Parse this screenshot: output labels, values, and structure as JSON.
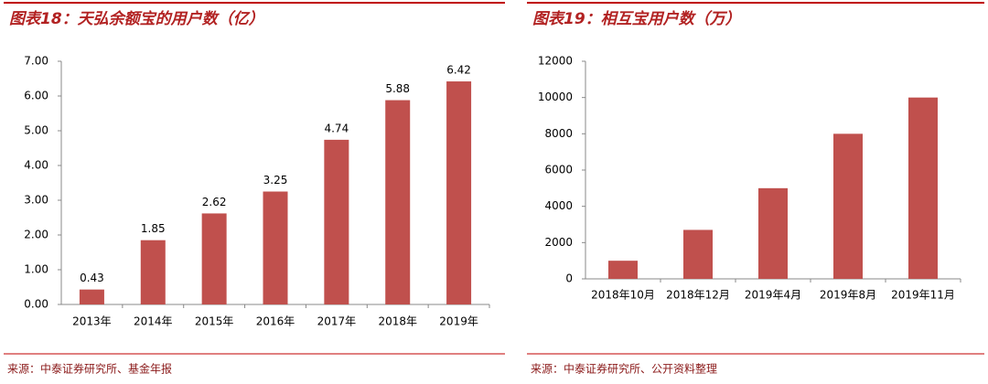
{
  "chart_data": [
    {
      "type": "bar",
      "title": "图表18：天弘余额宝的用户数（亿）",
      "categories": [
        "2013年",
        "2014年",
        "2015年",
        "2016年",
        "2017年",
        "2018年",
        "2019年"
      ],
      "values": [
        0.43,
        1.85,
        2.62,
        3.25,
        4.74,
        5.88,
        6.42
      ],
      "color": "#c0504d",
      "ylim": [
        0,
        7
      ],
      "yticks": [
        {
          "value": 0,
          "label": "0.00"
        },
        {
          "value": 1,
          "label": "1.00"
        },
        {
          "value": 2,
          "label": "2.00"
        },
        {
          "value": 3,
          "label": "3.00"
        },
        {
          "value": 4,
          "label": "4.00"
        },
        {
          "value": 5,
          "label": "5.00"
        },
        {
          "value": 6,
          "label": "6.00"
        },
        {
          "value": 7,
          "label": "7.00"
        }
      ],
      "data_labels": true,
      "source": "来源：中泰证券研究所、基金年报"
    },
    {
      "type": "bar",
      "title": "图表19：相互宝用户数（万）",
      "categories": [
        "2018年10月",
        "2018年12月",
        "2019年4月",
        "2019年8月",
        "2019年11月"
      ],
      "values": [
        1000,
        2700,
        5000,
        8000,
        10000
      ],
      "color": "#c0504d",
      "ylim": [
        0,
        12000
      ],
      "yticks": [
        0,
        2000,
        4000,
        6000,
        8000,
        10000,
        12000
      ],
      "data_labels": false,
      "source": "来源：中泰证券研究所、公开资料整理"
    }
  ]
}
